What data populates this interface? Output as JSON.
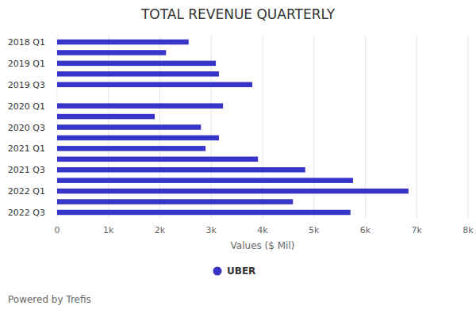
{
  "chart_data": {
    "type": "bar",
    "orientation": "horizontal",
    "title": "TOTAL REVENUE QUARTERLY",
    "x_label": "Values ($ Mil)",
    "footer": "Powered by Trefis",
    "categories": [
      "2018 Q1",
      null,
      "2019 Q1",
      null,
      "2019 Q3",
      null,
      "2020 Q1",
      null,
      "2020 Q3",
      null,
      "2021 Q1",
      null,
      "2021 Q3",
      null,
      "2022 Q1",
      null,
      "2022 Q3"
    ],
    "series": [
      {
        "name": "UBER",
        "color": "#3734c8",
        "values": [
          2560,
          2120,
          3090,
          3150,
          3800,
          null,
          3230,
          1900,
          2800,
          3150,
          2890,
          3910,
          4830,
          5760,
          6840,
          4590,
          5710
        ]
      }
    ],
    "xlim": [
      0,
      8000
    ],
    "xticks": [
      0,
      {
        "value": 1000,
        "label": "1k"
      },
      {
        "value": 2000,
        "label": "2k"
      },
      {
        "value": 3000,
        "label": "3k"
      },
      {
        "value": 4000,
        "label": "4k"
      },
      {
        "value": 5000,
        "label": "5k"
      },
      {
        "value": 6000,
        "label": "6k"
      },
      {
        "value": 7000,
        "label": "7k"
      },
      {
        "value": 8000,
        "label": "8k"
      }
    ],
    "grid": true,
    "legend": "bottom"
  }
}
